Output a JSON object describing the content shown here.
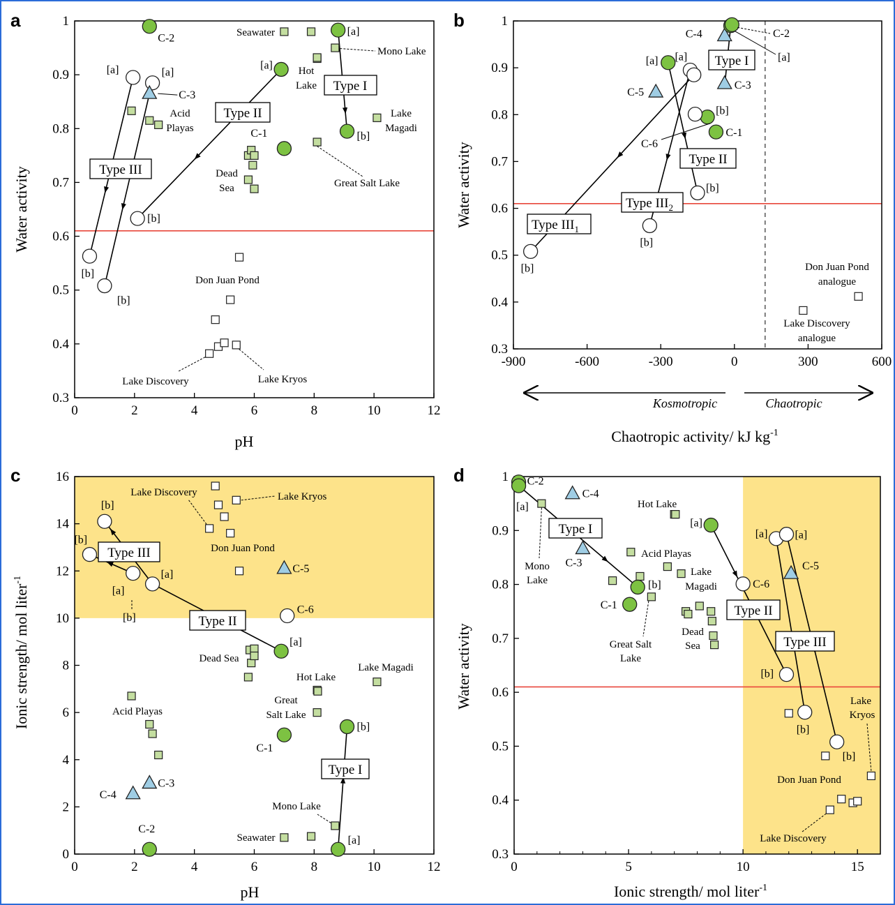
{
  "colors": {
    "green": "#7dc242",
    "lightgreen": "#c4dea0",
    "blue": "#9fcde4",
    "red": "#e8473b",
    "yellow": "#fde38a",
    "black": "#000000"
  },
  "chart_data": [
    {
      "id": "a",
      "type": "scatter",
      "panel_letter": "a",
      "xlabel": "pH",
      "ylabel": "Water activity",
      "xlim": [
        0,
        12
      ],
      "ylim": [
        0.3,
        1
      ],
      "xticks": [
        "0",
        "2",
        "4",
        "6",
        "8",
        "10",
        "12"
      ],
      "yticks": [
        "0.3",
        "0.4",
        "0.5",
        "0.6",
        "0.7",
        "0.8",
        "0.9",
        "1"
      ],
      "threshold_y": 0.61,
      "natural_sites": [
        {
          "x": 7.0,
          "y": 0.98
        },
        {
          "x": 7.9,
          "y": 0.98
        },
        {
          "x": 8.7,
          "y": 0.95
        },
        {
          "x": 8.1,
          "y": 0.93
        },
        {
          "x": 8.1,
          "y": 0.932
        },
        {
          "x": 10.1,
          "y": 0.82
        },
        {
          "x": 8.1,
          "y": 0.775
        },
        {
          "x": 1.9,
          "y": 0.833
        },
        {
          "x": 2.5,
          "y": 0.815
        },
        {
          "x": 2.8,
          "y": 0.807
        },
        {
          "x": 5.8,
          "y": 0.75
        },
        {
          "x": 5.9,
          "y": 0.76
        },
        {
          "x": 6.0,
          "y": 0.75
        },
        {
          "x": 5.95,
          "y": 0.732
        },
        {
          "x": 5.8,
          "y": 0.705
        },
        {
          "x": 6.0,
          "y": 0.688
        }
      ],
      "brines": [
        {
          "x": 5.5,
          "y": 0.561
        },
        {
          "x": 5.2,
          "y": 0.482
        },
        {
          "x": 4.7,
          "y": 0.445
        },
        {
          "x": 4.5,
          "y": 0.382
        },
        {
          "x": 4.8,
          "y": 0.395
        },
        {
          "x": 5.0,
          "y": 0.402
        },
        {
          "x": 5.4,
          "y": 0.398
        }
      ],
      "green_points": [
        {
          "label": "C-2",
          "x": 2.5,
          "y": 0.99
        },
        {
          "label": "[a]",
          "x": 8.8,
          "y": 0.983
        },
        {
          "label": "[b]",
          "x": 9.1,
          "y": 0.795
        },
        {
          "label": "[a]",
          "x": 6.9,
          "y": 0.91
        },
        {
          "label": "C-1",
          "x": 7.0,
          "y": 0.763
        }
      ],
      "white_points": [
        {
          "label": "[a]",
          "x": 1.95,
          "y": 0.895
        },
        {
          "label": "[a]",
          "x": 2.6,
          "y": 0.885
        },
        {
          "label": "[b]",
          "x": 2.1,
          "y": 0.633
        },
        {
          "label": "[b]",
          "x": 0.5,
          "y": 0.563
        },
        {
          "label": "[b]",
          "x": 1.0,
          "y": 0.508
        }
      ],
      "triangles": [
        {
          "label": "C-3",
          "x": 2.5,
          "y": 0.865
        }
      ],
      "type_labels": [
        "Type I",
        "Type II",
        "Type III"
      ],
      "site_labels": [
        "Seawater",
        "Mono Lake",
        "Hot",
        "Lake",
        "Lake",
        "Magadi",
        "Acid",
        "Playas",
        "Dead",
        "Sea",
        "Great Salt Lake",
        "Don Juan Pond",
        "Lake Discovery",
        "Lake Kryos"
      ]
    },
    {
      "id": "b",
      "type": "scatter",
      "panel_letter": "b",
      "xlabel": "Chaotropic activity/ kJ kg",
      "xlabel_sup": "-1",
      "ylabel": "Water activity",
      "xlim": [
        -900,
        600
      ],
      "ylim": [
        0.3,
        1
      ],
      "xticks": [
        "-900",
        "-600",
        "-300",
        "0",
        "300",
        "600"
      ],
      "yticks": [
        "0.3",
        "0.4",
        "0.5",
        "0.6",
        "0.7",
        "0.8",
        "0.9",
        "1"
      ],
      "threshold_y": 0.61,
      "dashed_x": 125,
      "arrow_labels": [
        "Kosmotropic",
        "Chaotropic"
      ],
      "brines": [
        {
          "x": 280,
          "y": 0.382
        },
        {
          "x": 505,
          "y": 0.412
        }
      ],
      "green_points": [
        {
          "label": "[a]",
          "x": -270,
          "y": 0.911
        },
        {
          "label": "[a]",
          "x": -15,
          "y": 0.99
        },
        {
          "label": "[b]",
          "x": -110,
          "y": 0.795
        },
        {
          "label": "C-1",
          "x": -75,
          "y": 0.763
        },
        {
          "label": "C-2",
          "x": -10,
          "y": 0.992
        }
      ],
      "white_points": [
        {
          "label": "[a]",
          "x": -180,
          "y": 0.895
        },
        {
          "label": "",
          "x": -165,
          "y": 0.885
        },
        {
          "label": "",
          "x": -160,
          "y": 0.801
        },
        {
          "label": "[b]",
          "x": -150,
          "y": 0.633
        },
        {
          "label": "[b]",
          "x": -345,
          "y": 0.563
        },
        {
          "label": "[b]",
          "x": -830,
          "y": 0.508
        }
      ],
      "triangles": [
        {
          "label": "C-4",
          "x": -40,
          "y": 0.968
        },
        {
          "label": "C-3",
          "x": -40,
          "y": 0.866
        },
        {
          "label": "C-5",
          "x": -320,
          "y": 0.848
        }
      ],
      "type_labels": [
        "Type I",
        "Type II",
        "Type III",
        "Type III"
      ],
      "type_subscripts": [
        "1",
        "2"
      ],
      "point_tags": [
        "[a]",
        "C-6"
      ],
      "site_labels": [
        "Don Juan Pond",
        "analogue",
        "Lake Discovery",
        "analogue"
      ]
    },
    {
      "id": "c",
      "type": "scatter",
      "panel_letter": "c",
      "xlabel": "pH",
      "ylabel": "Ionic strength/ mol liter",
      "ylabel_sup": "-1",
      "xlim": [
        0,
        12
      ],
      "ylim": [
        0,
        16
      ],
      "xticks": [
        "0",
        "2",
        "4",
        "6",
        "8",
        "10",
        "12"
      ],
      "yticks": [
        "0",
        "2",
        "4",
        "6",
        "8",
        "10",
        "12",
        "14",
        "16"
      ],
      "shaded_ymin": 10,
      "natural_sites": [
        {
          "x": 7.0,
          "y": 0.7
        },
        {
          "x": 7.9,
          "y": 0.75
        },
        {
          "x": 8.7,
          "y": 1.2
        },
        {
          "x": 1.9,
          "y": 6.7
        },
        {
          "x": 2.5,
          "y": 5.5
        },
        {
          "x": 2.6,
          "y": 5.1
        },
        {
          "x": 2.8,
          "y": 4.2
        },
        {
          "x": 8.1,
          "y": 6.0
        },
        {
          "x": 8.1,
          "y": 6.95
        },
        {
          "x": 8.12,
          "y": 6.9
        },
        {
          "x": 10.1,
          "y": 7.3
        },
        {
          "x": 5.8,
          "y": 7.5
        },
        {
          "x": 5.9,
          "y": 8.1
        },
        {
          "x": 5.85,
          "y": 8.65
        },
        {
          "x": 6.0,
          "y": 8.7
        },
        {
          "x": 6.0,
          "y": 8.4
        }
      ],
      "brines": [
        {
          "x": 4.7,
          "y": 15.6
        },
        {
          "x": 5.4,
          "y": 15.0
        },
        {
          "x": 4.8,
          "y": 14.8
        },
        {
          "x": 5.0,
          "y": 14.3
        },
        {
          "x": 4.5,
          "y": 13.8
        },
        {
          "x": 5.2,
          "y": 13.6
        },
        {
          "x": 5.5,
          "y": 12.0
        }
      ],
      "green_points": [
        {
          "label": "C-2",
          "x": 2.5,
          "y": 0.2
        },
        {
          "label": "[a]",
          "x": 8.8,
          "y": 0.2
        },
        {
          "label": "[b]",
          "x": 9.1,
          "y": 5.4
        },
        {
          "label": "[a]",
          "x": 6.9,
          "y": 8.6
        },
        {
          "label": "C-1",
          "x": 7.0,
          "y": 5.05
        }
      ],
      "white_points": [
        {
          "label": "[b]",
          "x": 1.0,
          "y": 14.1
        },
        {
          "label": "[b]",
          "x": 0.5,
          "y": 12.7
        },
        {
          "label": "[a]",
          "x": 1.95,
          "y": 11.9
        },
        {
          "label": "[a]",
          "x": 2.6,
          "y": 11.45
        },
        {
          "label": "C-6",
          "x": 7.1,
          "y": 10.1
        }
      ],
      "triangles": [
        {
          "label": "C-5",
          "x": 7.0,
          "y": 12.1
        },
        {
          "label": "C-3",
          "x": 2.5,
          "y": 3.0
        },
        {
          "label": "C-4",
          "x": 1.95,
          "y": 2.55
        }
      ],
      "type_labels": [
        "Type I",
        "Type II",
        "Type III"
      ],
      "point_tags": [
        "[b]",
        "[a]"
      ],
      "site_labels": [
        "Lake Discovery",
        "Lake Kryos",
        "Don Juan Pond",
        "Dead Sea",
        "Hot Lake",
        "Lake Magadi",
        "Great",
        "Salt Lake",
        "Acid Playas",
        "Mono Lake",
        "Seawater"
      ]
    },
    {
      "id": "d",
      "type": "scatter",
      "panel_letter": "d",
      "xlabel": "Ionic strength/ mol liter",
      "xlabel_sup": "-1",
      "ylabel": "Water activity",
      "xlim": [
        0,
        16
      ],
      "ylim": [
        0.3,
        1
      ],
      "xticks": [
        "0",
        "5",
        "10",
        "15"
      ],
      "yticks": [
        "0.3",
        "0.4",
        "0.5",
        "0.6",
        "0.7",
        "0.8",
        "0.9",
        "1"
      ],
      "threshold_y": 0.61,
      "shaded_xmin": 10,
      "natural_sites": [
        {
          "x": 1.2,
          "y": 0.95
        },
        {
          "x": 7.0,
          "y": 0.93
        },
        {
          "x": 7.05,
          "y": 0.93
        },
        {
          "x": 5.1,
          "y": 0.86
        },
        {
          "x": 5.5,
          "y": 0.815
        },
        {
          "x": 4.3,
          "y": 0.807
        },
        {
          "x": 6.7,
          "y": 0.833
        },
        {
          "x": 7.3,
          "y": 0.82
        },
        {
          "x": 6.0,
          "y": 0.777
        },
        {
          "x": 8.1,
          "y": 0.76
        },
        {
          "x": 7.5,
          "y": 0.75
        },
        {
          "x": 8.6,
          "y": 0.75
        },
        {
          "x": 7.6,
          "y": 0.745
        },
        {
          "x": 8.65,
          "y": 0.732
        },
        {
          "x": 8.7,
          "y": 0.705
        },
        {
          "x": 8.75,
          "y": 0.688
        }
      ],
      "brines": [
        {
          "x": 12.0,
          "y": 0.561
        },
        {
          "x": 13.6,
          "y": 0.482
        },
        {
          "x": 15.6,
          "y": 0.445
        },
        {
          "x": 14.3,
          "y": 0.402
        },
        {
          "x": 13.8,
          "y": 0.382
        },
        {
          "x": 14.8,
          "y": 0.395
        },
        {
          "x": 15.0,
          "y": 0.398
        }
      ],
      "green_points": [
        {
          "label": "C-2",
          "x": 0.2,
          "y": 0.99
        },
        {
          "label": "",
          "x": 0.2,
          "y": 0.983
        },
        {
          "label": "",
          "x": 5.4,
          "y": 0.795
        },
        {
          "label": "[a]",
          "x": 8.6,
          "y": 0.91
        },
        {
          "label": "C-1",
          "x": 5.05,
          "y": 0.763
        }
      ],
      "white_points": [
        {
          "label": "[a]",
          "x": 11.45,
          "y": 0.885
        },
        {
          "label": "[a]",
          "x": 11.9,
          "y": 0.893
        },
        {
          "label": "C-6",
          "x": 10.0,
          "y": 0.801
        },
        {
          "label": "[b]",
          "x": 11.9,
          "y": 0.633
        },
        {
          "label": "[b]",
          "x": 12.7,
          "y": 0.563
        },
        {
          "label": "[b]",
          "x": 14.1,
          "y": 0.508
        }
      ],
      "triangles": [
        {
          "label": "C-4",
          "x": 2.55,
          "y": 0.968
        },
        {
          "label": "C-3",
          "x": 3.0,
          "y": 0.866
        },
        {
          "label": "C-5",
          "x": 12.1,
          "y": 0.82
        }
      ],
      "type_labels": [
        "Type I",
        "Type II",
        "Type III"
      ],
      "point_tags": [
        "[a]",
        "[b]"
      ],
      "site_labels": [
        "Hot Lake",
        "Acid Playas",
        "Lake",
        "Magadi",
        "Mono",
        "Lake",
        "Great Salt",
        "Lake",
        "Dead",
        "Sea",
        "Lake",
        "Kryos",
        "Don Juan Pond",
        "Lake Discovery"
      ]
    }
  ]
}
